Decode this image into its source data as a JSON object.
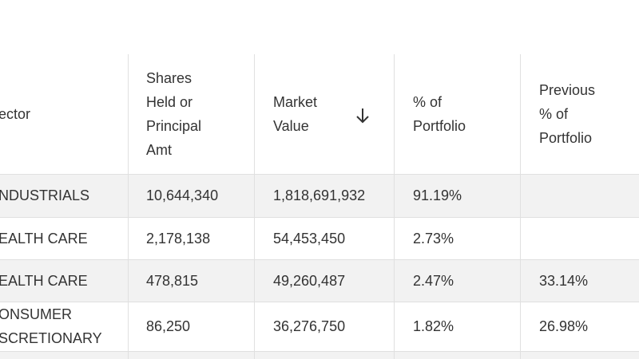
{
  "table": {
    "headers": [
      [
        "ector"
      ],
      [
        "Shares",
        "Held or",
        "Principal",
        "Amt"
      ],
      [
        "Market",
        "Value"
      ],
      [
        "% of",
        "Portfolio"
      ],
      [
        "Previous",
        "% of",
        "Portfolio"
      ]
    ],
    "rows": [
      [
        [
          "NDUSTRIALS"
        ],
        "10,644,340",
        "1,818,691,932",
        "91.19%",
        ""
      ],
      [
        [
          "EALTH CARE"
        ],
        "2,178,138",
        "54,453,450",
        "2.73%",
        ""
      ],
      [
        [
          "EALTH CARE"
        ],
        "478,815",
        "49,260,487",
        "2.47%",
        "33.14%"
      ],
      [
        [
          "ONSUMER",
          "SCRETIONARY"
        ],
        "86,250",
        "36,276,750",
        "1.82%",
        "26.98%"
      ]
    ]
  }
}
